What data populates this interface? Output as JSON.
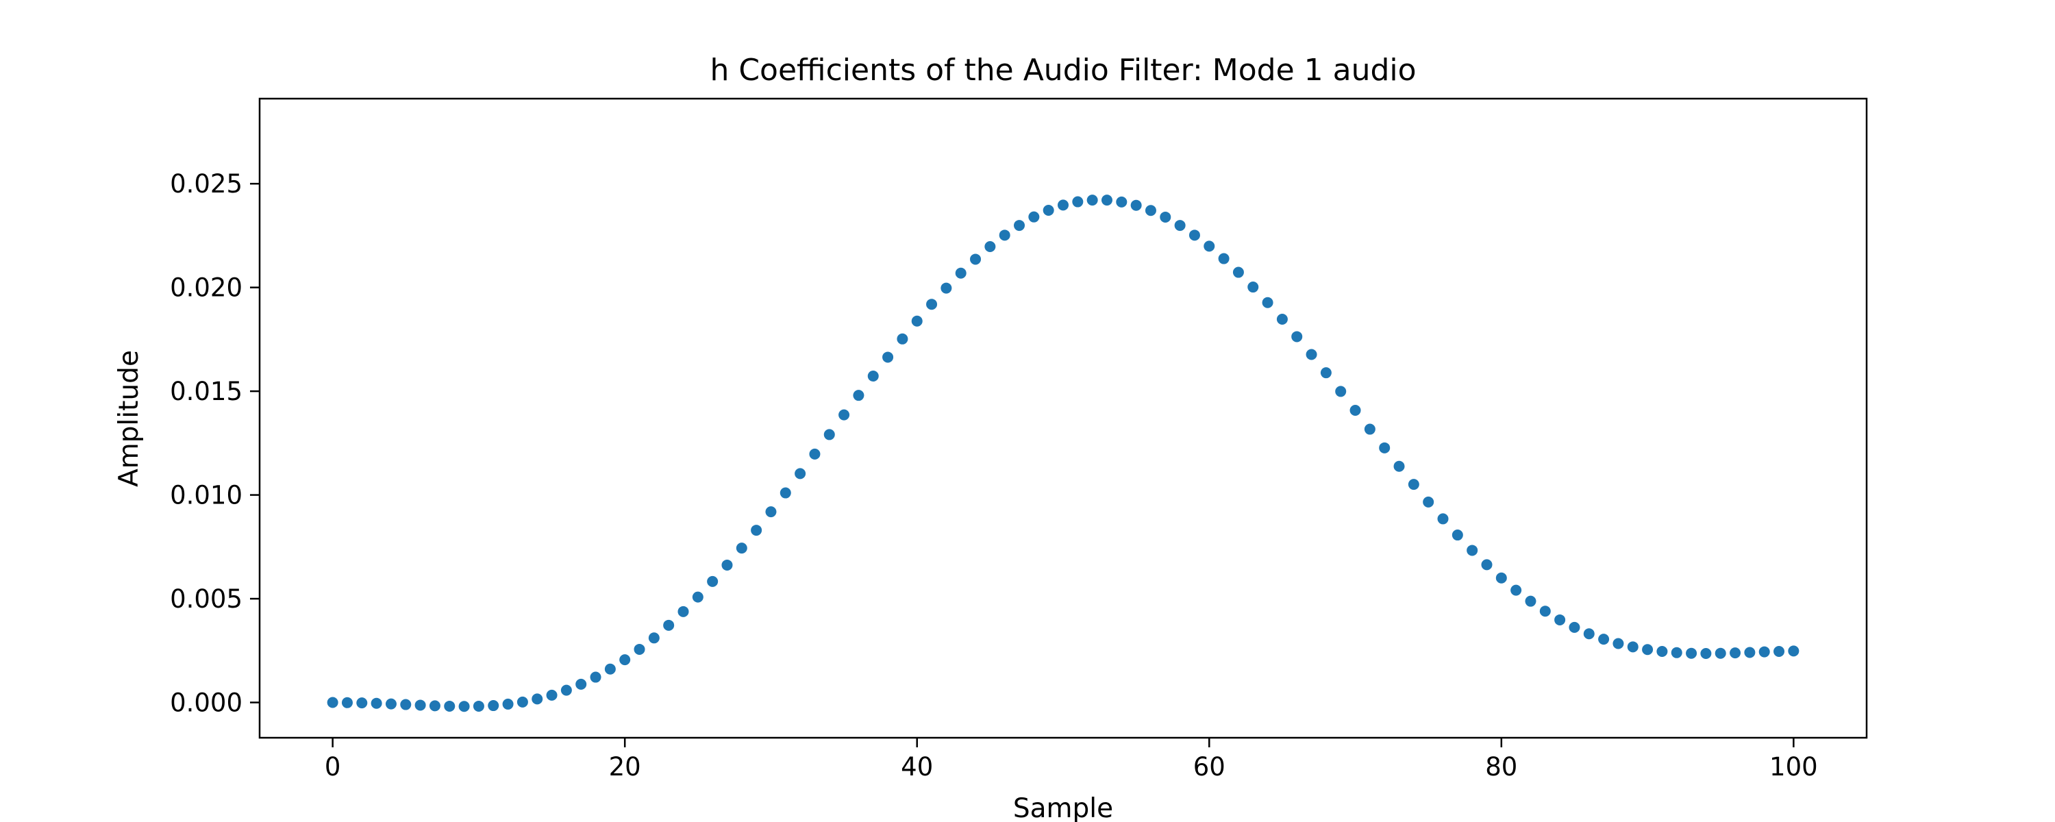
{
  "chart_data": {
    "type": "scatter",
    "title": "h Coefficients of the Audio Filter: Mode 1 audio",
    "xlabel": "Sample",
    "ylabel": "Amplitude",
    "xlim": [
      -5,
      105
    ],
    "ylim": [
      -0.0017,
      0.0291
    ],
    "xticks": [
      0,
      20,
      40,
      60,
      80,
      100
    ],
    "xtick_labels": [
      "0",
      "20",
      "40",
      "60",
      "80",
      "100"
    ],
    "yticks": [
      0.0,
      0.005,
      0.01,
      0.015,
      0.02,
      0.025
    ],
    "ytick_labels": [
      "0.000",
      "0.005",
      "0.010",
      "0.015",
      "0.020",
      "0.025"
    ],
    "grid": false,
    "marker_color": "#1f77b4",
    "series": [
      {
        "x": [
          0,
          1,
          2,
          3,
          4,
          5,
          6,
          7,
          8,
          9,
          10,
          11,
          12,
          13,
          14,
          15,
          16,
          17,
          18,
          19,
          20,
          21,
          22,
          23,
          24,
          25,
          26,
          27,
          28,
          29,
          30,
          31,
          32,
          33,
          34,
          35,
          36,
          37,
          38,
          39,
          40,
          41,
          42,
          43,
          44,
          45,
          46,
          47,
          48,
          49,
          50,
          51,
          52,
          53,
          54,
          55,
          56,
          57,
          58,
          59,
          60,
          61,
          62,
          63,
          64,
          65,
          66,
          67,
          68,
          69,
          70,
          71,
          72,
          73,
          74,
          75,
          76,
          77,
          78,
          79,
          80,
          81,
          82,
          83,
          84,
          85,
          86,
          87,
          88,
          89,
          90,
          91,
          92,
          93,
          94,
          95,
          96,
          97,
          98,
          99,
          100
        ],
        "y": [
          0.0,
          -1e-05,
          -2e-05,
          -4e-05,
          -7e-05,
          -0.0001,
          -0.00013,
          -0.00016,
          -0.00018,
          -0.00019,
          -0.00018,
          -0.00015,
          -8e-05,
          2e-05,
          0.00017,
          0.00035,
          0.00059,
          0.00088,
          0.00122,
          0.00161,
          0.00206,
          0.00256,
          0.00311,
          0.00372,
          0.00438,
          0.00508,
          0.00583,
          0.00662,
          0.00744,
          0.0083,
          0.00919,
          0.0101,
          0.01103,
          0.01197,
          0.01291,
          0.01386,
          0.0148,
          0.01573,
          0.01664,
          0.01752,
          0.01838,
          0.01919,
          0.01997,
          0.02069,
          0.02136,
          0.02197,
          0.02252,
          0.02299,
          0.0234,
          0.02372,
          0.02397,
          0.02413,
          0.02421,
          0.02421,
          0.02412,
          0.02396,
          0.02371,
          0.02339,
          0.02299,
          0.02252,
          0.02199,
          0.02139,
          0.02073,
          0.02002,
          0.01927,
          0.01847,
          0.01763,
          0.01677,
          0.01589,
          0.01499,
          0.01408,
          0.01317,
          0.01227,
          0.01138,
          0.01051,
          0.00966,
          0.00885,
          0.00807,
          0.00733,
          0.00664,
          0.006,
          0.00541,
          0.00488,
          0.0044,
          0.00398,
          0.00362,
          0.00331,
          0.00305,
          0.00284,
          0.00268,
          0.00255,
          0.00246,
          0.0024,
          0.00237,
          0.00236,
          0.00237,
          0.00239,
          0.00241,
          0.00244,
          0.00246,
          0.00248
        ]
      }
    ]
  }
}
